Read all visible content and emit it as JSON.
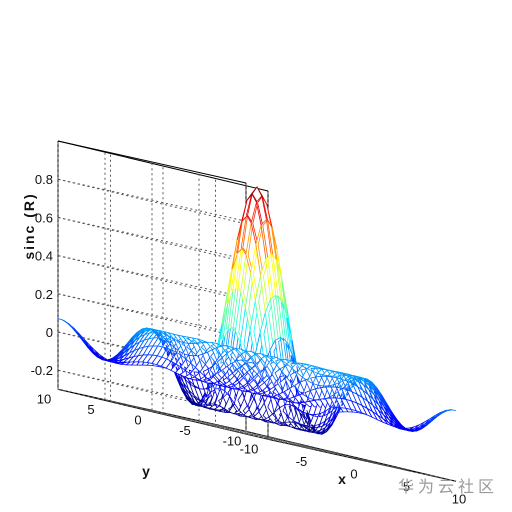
{
  "chart_data": {
    "type": "surface-mesh",
    "function": "sin(R)/R",
    "zlabel": "sinc (R)",
    "xlabel": "x",
    "ylabel": "y",
    "xlim": [
      -10,
      10
    ],
    "ylim": [
      -10,
      10
    ],
    "zlim": [
      -0.3,
      1.0
    ],
    "xticks": [
      "-10",
      "-5",
      "0",
      "5",
      "10"
    ],
    "yticks": [
      "-10",
      "-5",
      "0",
      "5",
      "10"
    ],
    "zticks": [
      "-0.2",
      "0",
      "0.2",
      "0.4",
      "0.6",
      "0.8"
    ],
    "x": [
      -10,
      -9.5,
      -9,
      -8.5,
      -8,
      -7.5,
      -7,
      -6.5,
      -6,
      -5.5,
      -5,
      -4.5,
      -4,
      -3.5,
      -3,
      -2.5,
      -2,
      -1.5,
      -1,
      -0.5,
      0,
      0.5,
      1,
      1.5,
      2,
      2.5,
      3,
      3.5,
      4,
      4.5,
      5,
      5.5,
      6,
      6.5,
      7,
      7.5,
      8,
      8.5,
      9,
      9.5,
      10
    ],
    "y": [
      -10,
      -9.5,
      -9,
      -8.5,
      -8,
      -7.5,
      -7,
      -6.5,
      -6,
      -5.5,
      -5,
      -4.5,
      -4,
      -3.5,
      -3,
      -2.5,
      -2,
      -1.5,
      -1,
      -0.5,
      0,
      0.5,
      1,
      1.5,
      2,
      2.5,
      3,
      3.5,
      4,
      4.5,
      5,
      5.5,
      6,
      6.5,
      7,
      7.5,
      8,
      8.5,
      9,
      9.5,
      10
    ],
    "grid": true,
    "colormap": "jet"
  },
  "watermark": "华为云社区"
}
